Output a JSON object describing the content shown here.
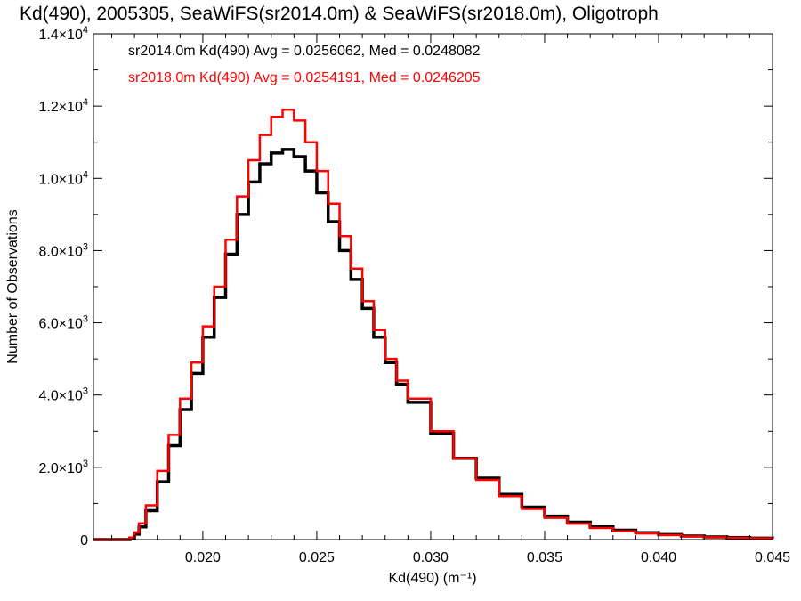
{
  "chart_data": {
    "type": "line",
    "title": "Kd(490), 2005305, SeaWiFS(sr2014.0m) & SeaWiFS(sr2018.0m), Oligotroph",
    "xlabel": "Kd(490) (m⁻¹)",
    "ylabel": "Number of Observations",
    "xlim": [
      0.0152,
      0.045
    ],
    "ylim": [
      0,
      14000
    ],
    "x_ticks": [
      {
        "value": 0.02,
        "label": "0.020"
      },
      {
        "value": 0.025,
        "label": "0.025"
      },
      {
        "value": 0.03,
        "label": "0.030"
      },
      {
        "value": 0.035,
        "label": "0.035"
      },
      {
        "value": 0.04,
        "label": "0.040"
      },
      {
        "value": 0.045,
        "label": "0.045"
      }
    ],
    "y_ticks": [
      {
        "value": 0,
        "mant": "0",
        "exp": ""
      },
      {
        "value": 2000,
        "mant": "2.0×10",
        "exp": "3"
      },
      {
        "value": 4000,
        "mant": "4.0×10",
        "exp": "3"
      },
      {
        "value": 6000,
        "mant": "6.0×10",
        "exp": "3"
      },
      {
        "value": 8000,
        "mant": "8.0×10",
        "exp": "3"
      },
      {
        "value": 10000,
        "mant": "1.0×10",
        "exp": "4"
      },
      {
        "value": 12000,
        "mant": "1.2×10",
        "exp": "4"
      },
      {
        "value": 14000,
        "mant": "1.4×10",
        "exp": "4"
      }
    ],
    "legend_placement": "top-left",
    "series": [
      {
        "name": "sr2014.0m Kd(490) Avg = 0.0256062, Med = 0.0248082",
        "color": "#000000",
        "x": [
          0.0152,
          0.016,
          0.0165,
          0.0168,
          0.017,
          0.0172,
          0.0175,
          0.018,
          0.0185,
          0.019,
          0.0195,
          0.02,
          0.0205,
          0.021,
          0.0215,
          0.022,
          0.0225,
          0.023,
          0.0235,
          0.024,
          0.0245,
          0.025,
          0.0255,
          0.026,
          0.0265,
          0.027,
          0.0275,
          0.028,
          0.0285,
          0.029,
          0.03,
          0.031,
          0.032,
          0.033,
          0.034,
          0.035,
          0.036,
          0.037,
          0.038,
          0.039,
          0.04,
          0.041,
          0.042,
          0.043,
          0.044,
          0.045
        ],
        "y": [
          0,
          0,
          0,
          40,
          150,
          350,
          800,
          1600,
          2600,
          3600,
          4600,
          5600,
          6700,
          7900,
          9000,
          9900,
          10400,
          10700,
          10800,
          10600,
          10200,
          9600,
          8800,
          8000,
          7200,
          6400,
          5600,
          4900,
          4300,
          3800,
          2950,
          2250,
          1700,
          1250,
          900,
          650,
          480,
          350,
          260,
          190,
          140,
          100,
          75,
          55,
          40,
          30
        ]
      },
      {
        "name": "sr2018.0m Kd(490) Avg = 0.0254191, Med = 0.0246205",
        "color": "#ff0000",
        "x": [
          0.0152,
          0.016,
          0.0165,
          0.0168,
          0.017,
          0.0172,
          0.0175,
          0.018,
          0.0185,
          0.019,
          0.0195,
          0.02,
          0.0205,
          0.021,
          0.0215,
          0.022,
          0.0225,
          0.023,
          0.0235,
          0.024,
          0.0245,
          0.025,
          0.0255,
          0.026,
          0.0265,
          0.027,
          0.0275,
          0.028,
          0.0285,
          0.029,
          0.03,
          0.031,
          0.032,
          0.033,
          0.034,
          0.035,
          0.036,
          0.037,
          0.038,
          0.039,
          0.04,
          0.041,
          0.042,
          0.043,
          0.044,
          0.045
        ],
        "y": [
          0,
          0,
          0,
          60,
          200,
          450,
          950,
          1900,
          2900,
          3900,
          4900,
          5900,
          7000,
          8300,
          9500,
          10500,
          11200,
          11700,
          11900,
          11600,
          11000,
          10200,
          9300,
          8400,
          7500,
          6600,
          5800,
          5000,
          4400,
          3900,
          3000,
          2250,
          1650,
          1200,
          850,
          600,
          440,
          320,
          230,
          170,
          125,
          90,
          65,
          48,
          35,
          25
        ]
      }
    ]
  }
}
